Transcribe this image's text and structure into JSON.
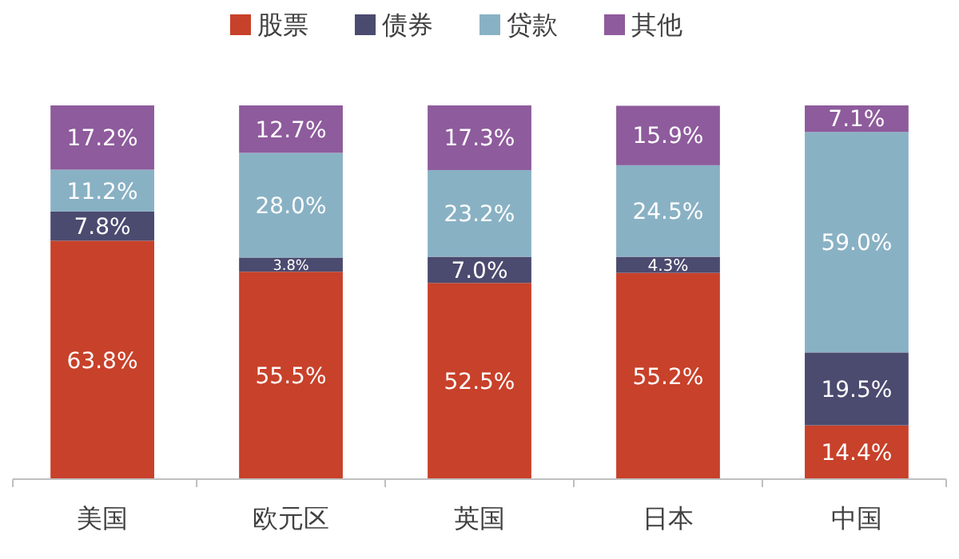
{
  "chart_data": {
    "type": "bar",
    "stacked": true,
    "legend": "top",
    "grid": false,
    "categories": [
      "美国",
      "欧元区",
      "英国",
      "日本",
      "中国"
    ],
    "series": [
      {
        "name": "股票",
        "color": "#c8412a",
        "values": [
          63.8,
          55.5,
          52.5,
          55.2,
          14.4
        ],
        "value_labels": [
          "63.8%",
          "55.5%",
          "52.5%",
          "55.2%",
          "14.4%"
        ]
      },
      {
        "name": "债券",
        "color": "#4b4a6f",
        "values": [
          7.8,
          3.8,
          7.0,
          4.3,
          19.5
        ],
        "value_labels": [
          "7.8%",
          "3.8%",
          "7.0%",
          "4.3%",
          "19.5%"
        ]
      },
      {
        "name": "贷款",
        "color": "#89b1c4",
        "values": [
          11.2,
          28.0,
          23.2,
          24.5,
          59.0
        ],
        "value_labels": [
          "11.2%",
          "28.0%",
          "23.2%",
          "24.5%",
          "59.0%"
        ]
      },
      {
        "name": "其他",
        "color": "#8e5b9c",
        "values": [
          17.2,
          12.7,
          17.3,
          15.9,
          7.1
        ],
        "value_labels": [
          "17.2%",
          "12.7%",
          "17.3%",
          "15.9%",
          "7.1%"
        ]
      }
    ]
  }
}
